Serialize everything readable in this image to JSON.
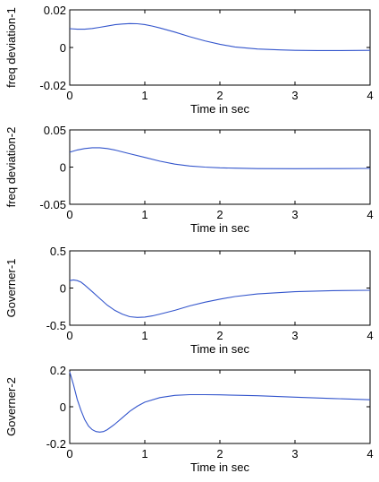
{
  "chart_data": [
    {
      "type": "line",
      "title": "",
      "xlabel": "Time in sec",
      "ylabel": "freq deviation-1",
      "xlim": [
        0,
        4
      ],
      "ylim": [
        -0.02,
        0.02
      ],
      "xticks": [
        0,
        1,
        2,
        3,
        4
      ],
      "yticks": [
        -0.02,
        0,
        0.02
      ],
      "ytick_labels": [
        "-0.02",
        "0",
        "0.02"
      ],
      "grid": false,
      "color": "#3355cc",
      "series": [
        {
          "x": [
            0,
            0.1,
            0.2,
            0.3,
            0.4,
            0.5,
            0.6,
            0.7,
            0.8,
            0.9,
            1.0,
            1.1,
            1.2,
            1.4,
            1.6,
            1.8,
            2.0,
            2.2,
            2.5,
            2.8,
            3.0,
            3.3,
            3.6,
            4.0
          ],
          "y": [
            0.01,
            0.0097,
            0.0097,
            0.0101,
            0.0107,
            0.0114,
            0.0121,
            0.0125,
            0.0127,
            0.0126,
            0.0122,
            0.0114,
            0.0104,
            0.0082,
            0.0057,
            0.0035,
            0.0017,
            0.0003,
            -0.0008,
            -0.0013,
            -0.0015,
            -0.0016,
            -0.0016,
            -0.0015
          ]
        }
      ]
    },
    {
      "type": "line",
      "title": "",
      "xlabel": "Time in sec",
      "ylabel": "freq deviation-2",
      "xlim": [
        0,
        4
      ],
      "ylim": [
        -0.05,
        0.05
      ],
      "xticks": [
        0,
        1,
        2,
        3,
        4
      ],
      "yticks": [
        -0.05,
        0,
        0.05
      ],
      "ytick_labels": [
        "-0.05",
        "0",
        "0.05"
      ],
      "grid": false,
      "color": "#3355cc",
      "series": [
        {
          "x": [
            0,
            0.1,
            0.2,
            0.3,
            0.4,
            0.5,
            0.6,
            0.8,
            1.0,
            1.2,
            1.4,
            1.6,
            1.8,
            2.0,
            2.2,
            2.5,
            3.0,
            3.5,
            4.0
          ],
          "y": [
            0.02,
            0.023,
            0.025,
            0.026,
            0.026,
            0.025,
            0.023,
            0.018,
            0.013,
            0.008,
            0.004,
            0.0015,
            0.0,
            -0.001,
            -0.0015,
            -0.002,
            -0.0022,
            -0.002,
            -0.0018
          ]
        }
      ]
    },
    {
      "type": "line",
      "title": "",
      "xlabel": "Time in sec",
      "ylabel": "Governer-1",
      "xlim": [
        0,
        4
      ],
      "ylim": [
        -0.5,
        0.5
      ],
      "xticks": [
        0,
        1,
        2,
        3,
        4
      ],
      "yticks": [
        -0.5,
        0,
        0.5
      ],
      "ytick_labels": [
        "-0.5",
        "0",
        "0.5"
      ],
      "grid": false,
      "color": "#3355cc",
      "series": [
        {
          "x": [
            0,
            0.05,
            0.1,
            0.15,
            0.2,
            0.3,
            0.4,
            0.5,
            0.6,
            0.7,
            0.8,
            0.9,
            1.0,
            1.1,
            1.2,
            1.4,
            1.6,
            1.8,
            2.0,
            2.2,
            2.5,
            3.0,
            3.5,
            4.0
          ],
          "y": [
            0.1,
            0.11,
            0.1,
            0.08,
            0.04,
            -0.05,
            -0.14,
            -0.23,
            -0.3,
            -0.35,
            -0.385,
            -0.395,
            -0.39,
            -0.375,
            -0.35,
            -0.3,
            -0.24,
            -0.19,
            -0.15,
            -0.115,
            -0.08,
            -0.05,
            -0.035,
            -0.03
          ]
        }
      ]
    },
    {
      "type": "line",
      "title": "",
      "xlabel": "Time in sec",
      "ylabel": "Governer-2",
      "xlim": [
        0,
        4
      ],
      "ylim": [
        -0.2,
        0.2
      ],
      "xticks": [
        0,
        1,
        2,
        3,
        4
      ],
      "yticks": [
        -0.2,
        0,
        0.2
      ],
      "ytick_labels": [
        "-0.2",
        "0",
        "0.2"
      ],
      "grid": false,
      "color": "#3355cc",
      "series": [
        {
          "x": [
            0,
            0.05,
            0.1,
            0.15,
            0.2,
            0.25,
            0.3,
            0.35,
            0.4,
            0.45,
            0.5,
            0.6,
            0.7,
            0.8,
            0.9,
            1.0,
            1.2,
            1.4,
            1.6,
            1.8,
            2.0,
            2.5,
            3.0,
            3.5,
            4.0
          ],
          "y": [
            0.19,
            0.12,
            0.04,
            -0.02,
            -0.07,
            -0.105,
            -0.125,
            -0.135,
            -0.138,
            -0.135,
            -0.125,
            -0.095,
            -0.06,
            -0.025,
            0.003,
            0.025,
            0.05,
            0.062,
            0.066,
            0.066,
            0.065,
            0.06,
            0.052,
            0.045,
            0.038
          ]
        }
      ]
    }
  ]
}
